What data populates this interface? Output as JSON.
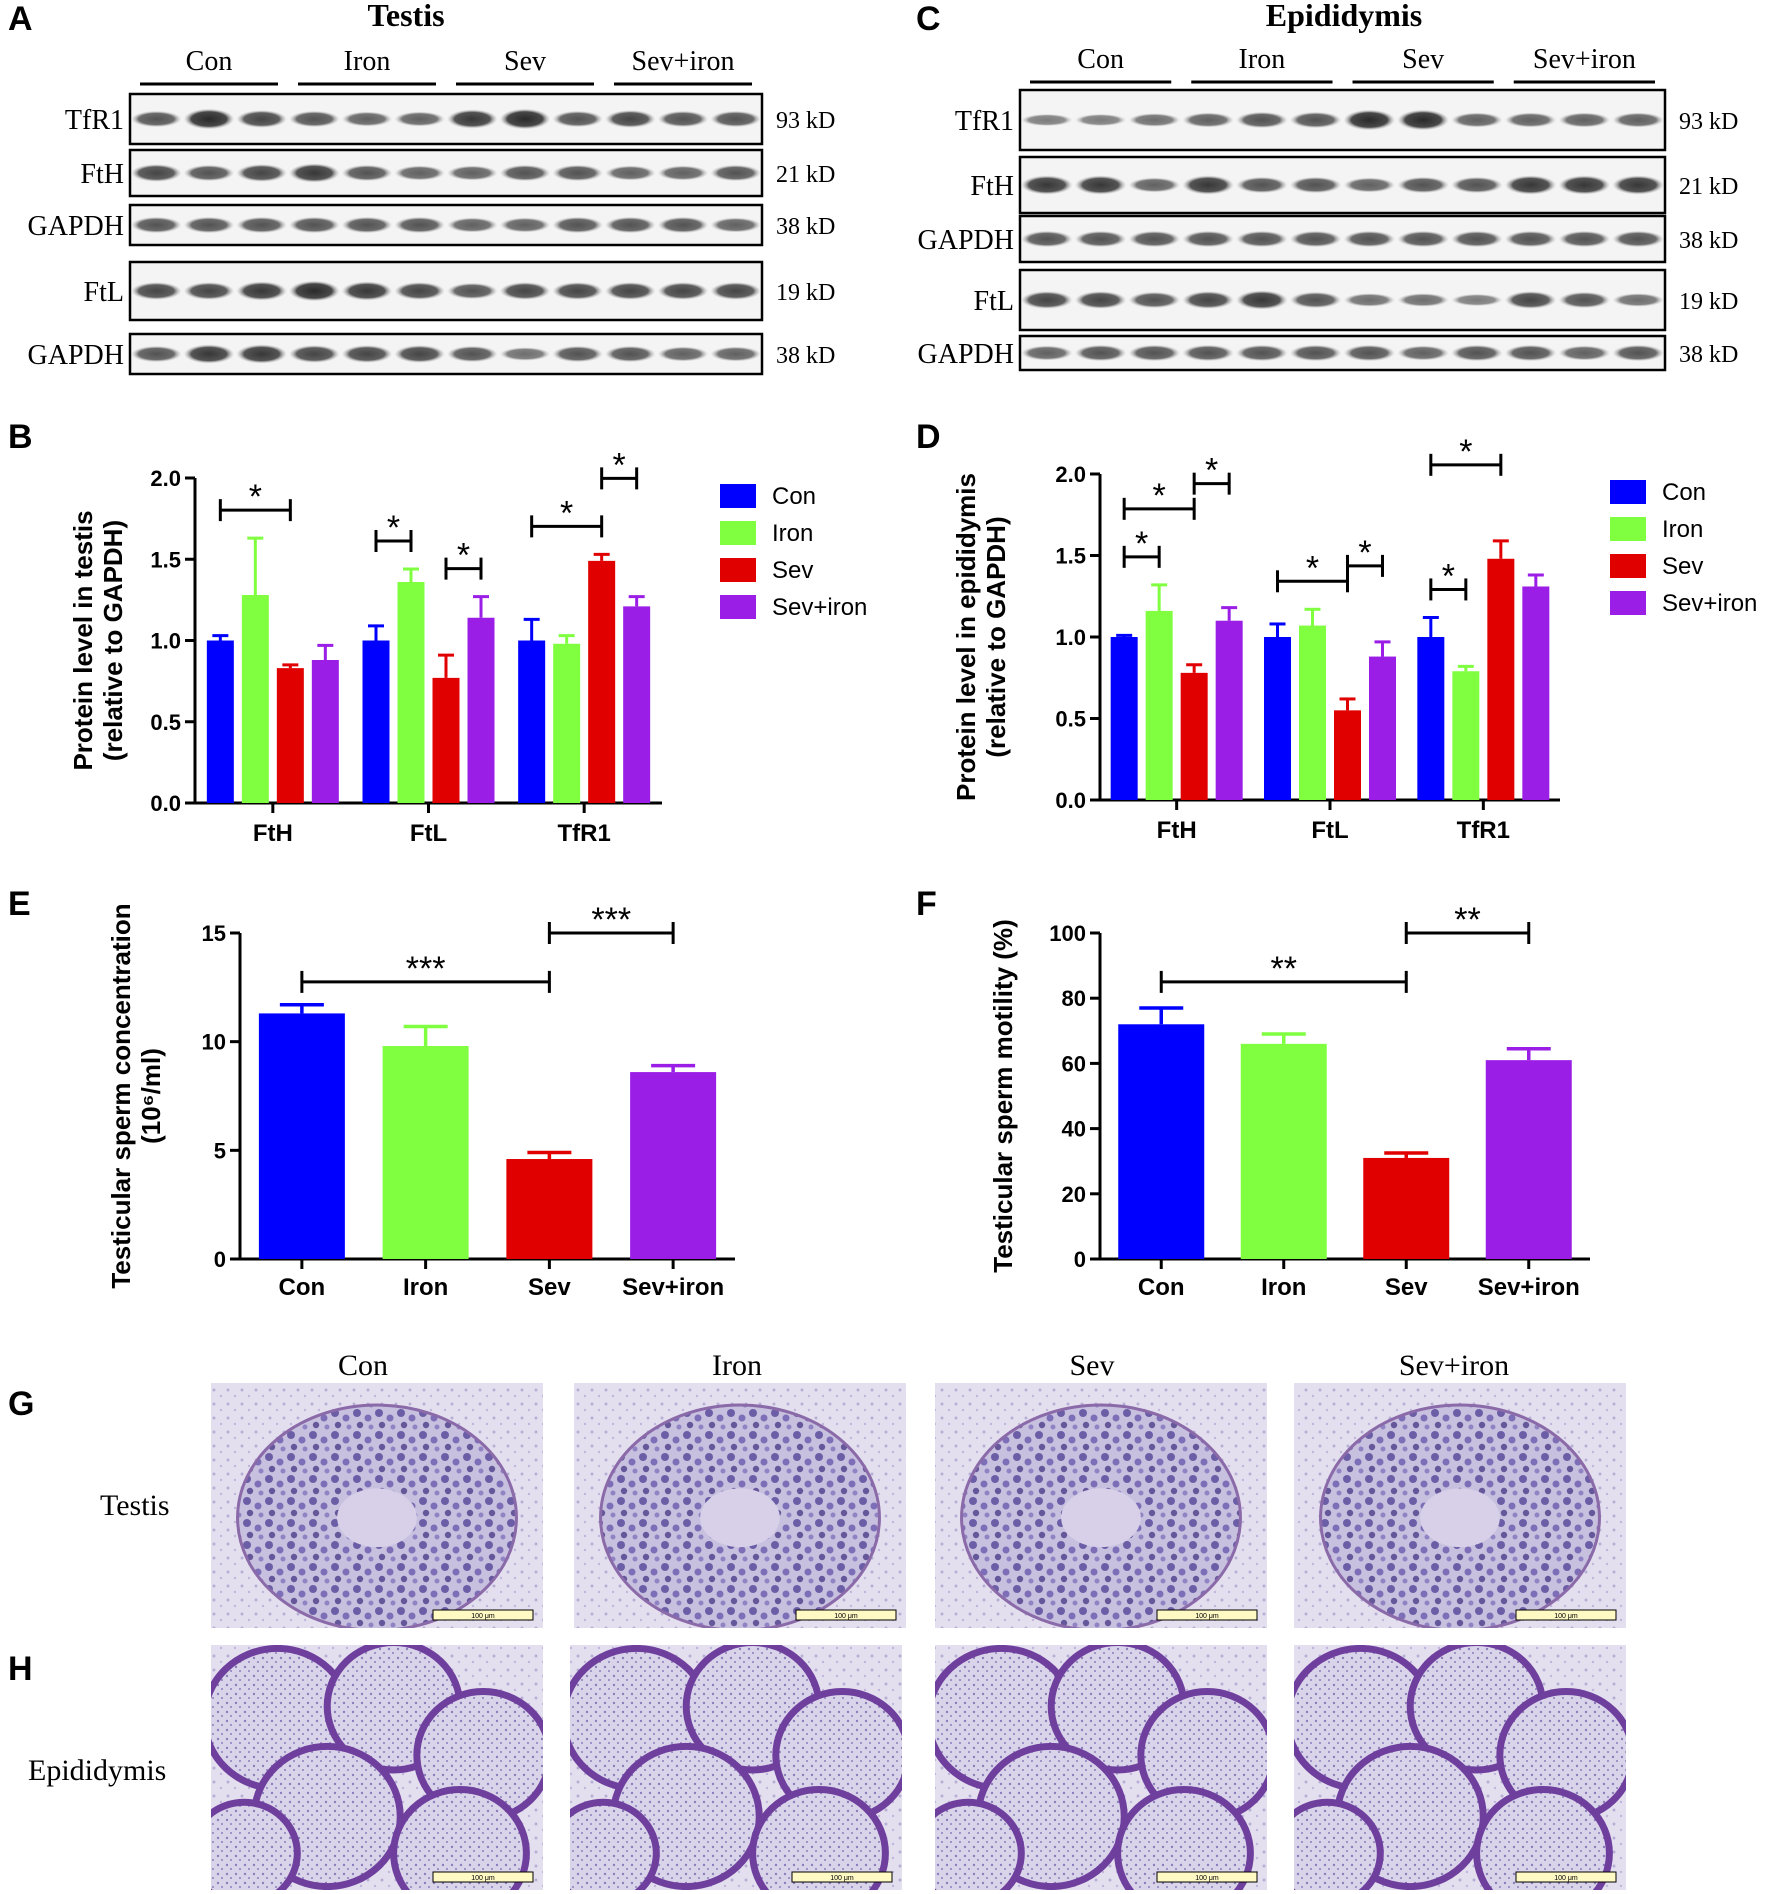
{
  "panels": {
    "A": {
      "letter": "A",
      "title": "Testis",
      "groups": [
        "Con",
        "Iron",
        "Sev",
        "Sev+iron"
      ],
      "bands": [
        {
          "name": "TfR1",
          "kd": "93 kD"
        },
        {
          "name": "FtH",
          "kd": "21 kD"
        },
        {
          "name": "GAPDH",
          "kd": "38 kD"
        },
        {
          "name": "FtL",
          "kd": "19 kD"
        },
        {
          "name": "GAPDH",
          "kd": "38 kD"
        }
      ]
    },
    "C": {
      "letter": "C",
      "title": "Epididymis",
      "groups": [
        "Con",
        "Iron",
        "Sev",
        "Sev+iron"
      ],
      "bands": [
        {
          "name": "TfR1",
          "kd": "93 kD"
        },
        {
          "name": "FtH",
          "kd": "21 kD"
        },
        {
          "name": "GAPDH",
          "kd": "38 kD"
        },
        {
          "name": "FtL",
          "kd": "19 kD"
        },
        {
          "name": "GAPDH",
          "kd": "38 kD"
        }
      ]
    },
    "B": {
      "letter": "B"
    },
    "D": {
      "letter": "D"
    },
    "E": {
      "letter": "E"
    },
    "F": {
      "letter": "F"
    },
    "G": {
      "letter": "G",
      "row_label": "Testis",
      "columns": [
        "Con",
        "Iron",
        "Sev",
        "Sev+iron"
      ],
      "scale_bar": "100 μm"
    },
    "H": {
      "letter": "H",
      "row_label": "Epididymis",
      "scale_bar": "100 μm"
    }
  },
  "colors": {
    "Con": "#0000ff",
    "Iron": "#80ff40",
    "Sev": "#e00000",
    "Sev+iron": "#9a1ee6"
  },
  "chart_data": [
    {
      "id": "B",
      "type": "bar",
      "title": "",
      "ylabel": [
        "Protein level in testis",
        "(relative to GAPDH)"
      ],
      "categories": [
        "FtH",
        "FtL",
        "TfR1"
      ],
      "ylim": [
        0,
        2.0
      ],
      "yticks": [
        "0.0",
        "0.5",
        "1.0",
        "1.5",
        "2.0"
      ],
      "series": [
        {
          "name": "Con",
          "values": [
            1.0,
            1.0,
            1.0
          ],
          "errors": [
            0.03,
            0.09,
            0.13
          ]
        },
        {
          "name": "Iron",
          "values": [
            1.28,
            1.36,
            0.98
          ],
          "errors": [
            0.35,
            0.08,
            0.05
          ]
        },
        {
          "name": "Sev",
          "values": [
            0.83,
            0.77,
            1.49
          ],
          "errors": [
            0.02,
            0.14,
            0.04
          ]
        },
        {
          "name": "Sev+iron",
          "values": [
            0.88,
            1.14,
            1.21
          ],
          "errors": [
            0.09,
            0.13,
            0.06
          ]
        }
      ],
      "significance": [
        {
          "cat": 0,
          "from": 0,
          "to": 2,
          "label": "*",
          "level": 0
        },
        {
          "cat": 1,
          "from": 0,
          "to": 1,
          "label": "*",
          "level": 0
        },
        {
          "cat": 1,
          "from": 2,
          "to": 3,
          "label": "*",
          "level": 0
        },
        {
          "cat": 2,
          "from": 0,
          "to": 2,
          "label": "*",
          "level": 0
        },
        {
          "cat": 2,
          "from": 2,
          "to": 3,
          "label": "*",
          "level": 1
        }
      ],
      "legend": [
        "Con",
        "Iron",
        "Sev",
        "Sev+iron"
      ]
    },
    {
      "id": "D",
      "type": "bar",
      "title": "",
      "ylabel": [
        "Protein level in epididymis",
        "(relative to GAPDH)"
      ],
      "categories": [
        "FtH",
        "FtL",
        "TfR1"
      ],
      "ylim": [
        0,
        2.0
      ],
      "yticks": [
        "0.0",
        "0.5",
        "1.0",
        "1.5",
        "2.0"
      ],
      "series": [
        {
          "name": "Con",
          "values": [
            1.0,
            1.0,
            1.0
          ],
          "errors": [
            0.01,
            0.08,
            0.12
          ]
        },
        {
          "name": "Iron",
          "values": [
            1.16,
            1.07,
            0.79
          ],
          "errors": [
            0.16,
            0.1,
            0.03
          ]
        },
        {
          "name": "Sev",
          "values": [
            0.78,
            0.55,
            1.48
          ],
          "errors": [
            0.05,
            0.07,
            0.11
          ]
        },
        {
          "name": "Sev+iron",
          "values": [
            1.1,
            0.88,
            1.31
          ],
          "errors": [
            0.08,
            0.09,
            0.07
          ]
        }
      ],
      "significance": [
        {
          "cat": 0,
          "from": 0,
          "to": 1,
          "label": "*",
          "level": 0
        },
        {
          "cat": 0,
          "from": 0,
          "to": 2,
          "label": "*",
          "level": 1
        },
        {
          "cat": 0,
          "from": 2,
          "to": 3,
          "label": "*",
          "level": 2
        },
        {
          "cat": 1,
          "from": 0,
          "to": 2,
          "label": "*",
          "level": 0
        },
        {
          "cat": 1,
          "from": 2,
          "to": 3,
          "label": "*",
          "level": 1
        },
        {
          "cat": 2,
          "from": 0,
          "to": 1,
          "label": "*",
          "level": 0
        },
        {
          "cat": 2,
          "from": 0,
          "to": 2,
          "label": "*",
          "level": 1
        }
      ],
      "legend": [
        "Con",
        "Iron",
        "Sev",
        "Sev+iron"
      ]
    },
    {
      "id": "E",
      "type": "bar",
      "title": "",
      "ylabel": [
        "Testicular sperm concentration",
        "(10⁶/ml)"
      ],
      "categories": [
        "Con",
        "Iron",
        "Sev",
        "Sev+iron"
      ],
      "ylim": [
        0,
        15
      ],
      "yticks": [
        "0",
        "5",
        "10",
        "15"
      ],
      "values": [
        11.3,
        9.8,
        4.6,
        8.6
      ],
      "errors": [
        0.4,
        0.9,
        0.3,
        0.3
      ],
      "significance": [
        {
          "from": 0,
          "to": 2,
          "label": "***",
          "level": 0
        },
        {
          "from": 2,
          "to": 3,
          "label": "***",
          "level": 1
        }
      ]
    },
    {
      "id": "F",
      "type": "bar",
      "title": "",
      "ylabel": [
        "Testicular sperm motility (%)"
      ],
      "categories": [
        "Con",
        "Iron",
        "Sev",
        "Sev+iron"
      ],
      "ylim": [
        0,
        100
      ],
      "yticks": [
        "0",
        "20",
        "40",
        "60",
        "80",
        "100"
      ],
      "values": [
        72,
        66,
        31,
        61
      ],
      "errors": [
        5,
        3,
        1.5,
        3.5
      ],
      "significance": [
        {
          "from": 0,
          "to": 2,
          "label": "**",
          "level": 0
        },
        {
          "from": 2,
          "to": 3,
          "label": "**",
          "level": 1
        }
      ]
    }
  ]
}
